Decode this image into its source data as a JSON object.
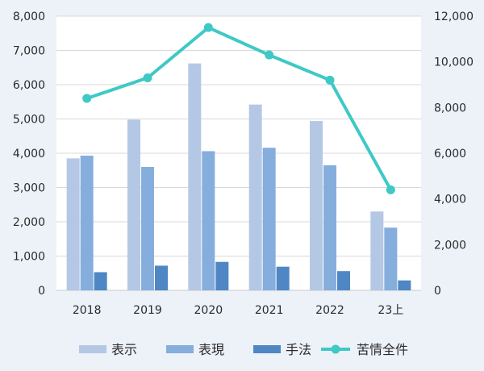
{
  "chart_data": {
    "type": "bar",
    "categories": [
      "2018",
      "2019",
      "2020",
      "2021",
      "2022",
      "23上"
    ],
    "series": [
      {
        "name": "表示",
        "type": "bar",
        "axis": "left",
        "color": "#b4c8e6",
        "values": [
          3850,
          4980,
          6620,
          5420,
          4940,
          2300
        ]
      },
      {
        "name": "表現",
        "type": "bar",
        "axis": "left",
        "color": "#86aedd",
        "values": [
          3930,
          3600,
          4060,
          4160,
          3650,
          1830
        ]
      },
      {
        "name": "手法",
        "type": "bar",
        "axis": "left",
        "color": "#4e87c4",
        "values": [
          530,
          720,
          830,
          690,
          560,
          290
        ]
      },
      {
        "name": "苦情全件",
        "type": "line",
        "axis": "right",
        "color": "#3ec9c6",
        "values": [
          8400,
          9300,
          11500,
          10300,
          9200,
          4400
        ]
      }
    ],
    "y_left": {
      "range": [
        0,
        8000
      ],
      "ticks": [
        "0",
        "1,000",
        "2,000",
        "3,000",
        "4,000",
        "5,000",
        "6,000",
        "7,000",
        "8,000"
      ]
    },
    "y_right": {
      "range": [
        0,
        12000
      ],
      "ticks": [
        "0",
        "2,000",
        "4,000",
        "6,000",
        "8,000",
        "10,000",
        "12,000"
      ]
    },
    "grid": true,
    "legend_position": "bottom"
  }
}
